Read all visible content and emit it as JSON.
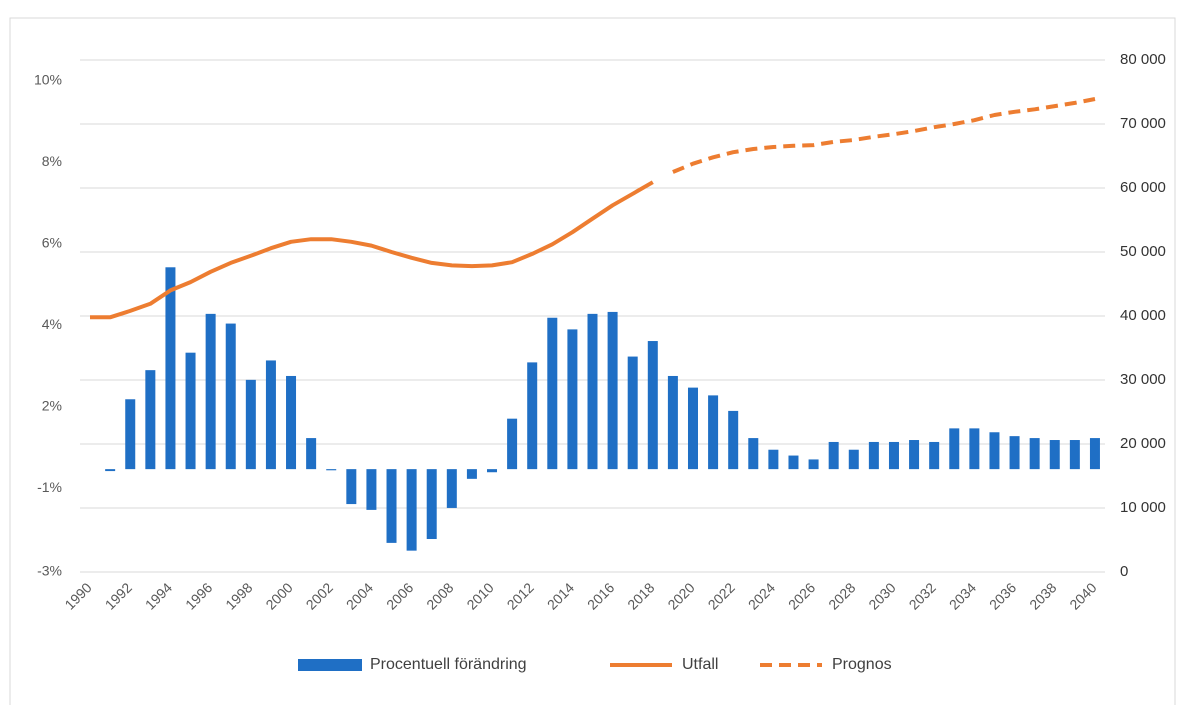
{
  "chart_data": {
    "type": "bar_line",
    "categories": [
      1990,
      null,
      1992,
      null,
      1994,
      null,
      1996,
      null,
      1998,
      null,
      2000,
      null,
      2002,
      null,
      2004,
      null,
      2006,
      null,
      2008,
      null,
      2010,
      null,
      2012,
      null,
      2014,
      null,
      2016,
      null,
      2018,
      null,
      2020,
      null,
      2022,
      null,
      2024,
      null,
      2026,
      null,
      2028,
      null,
      2030,
      null,
      2032,
      null,
      2034,
      null,
      2036,
      null,
      2038,
      null,
      2040
    ],
    "ylim": [
      -2.65,
      10.54
    ],
    "yticks": [
      {
        "value": 10,
        "label": "10%"
      },
      {
        "value": 7.9,
        "label": "8%"
      },
      {
        "value": 5.8,
        "label": "6%"
      },
      {
        "value": 3.7,
        "label": "4%"
      },
      {
        "value": 1.6,
        "label": "2%"
      },
      {
        "value": -0.5,
        "label": "-1%"
      },
      {
        "value": -2.65,
        "label": "-3%"
      }
    ],
    "y2lim": [
      0,
      80000
    ],
    "y2ticks": [
      0,
      {
        "value": 10000,
        "label": "10 000"
      },
      {
        "value": 20000,
        "label": "20 000"
      },
      {
        "value": 30000,
        "label": "30 000"
      },
      {
        "value": 40000,
        "label": "40 000"
      },
      {
        "value": 50000,
        "label": "50 000"
      },
      {
        "value": 60000,
        "label": "60 000"
      },
      {
        "value": 70000,
        "label": "70 000"
      },
      {
        "value": 80000,
        "label": "80 000"
      }
    ],
    "grid": true,
    "legend": "bottom",
    "series": [
      {
        "name": "Procentuell förändring",
        "type": "bar",
        "color": "#1f6fc5",
        "values": [
          null,
          -0.05,
          1.8,
          2.55,
          5.2,
          3.0,
          4.0,
          3.75,
          2.3,
          2.8,
          2.4,
          0.8,
          -0.03,
          -0.9,
          -1.05,
          -1.9,
          -2.1,
          -1.8,
          -1.0,
          -0.25,
          -0.08,
          1.3,
          2.75,
          3.9,
          3.6,
          4.0,
          4.05,
          2.9,
          3.3,
          2.4,
          2.1,
          1.9,
          1.5,
          0.8,
          0.5,
          0.35,
          0.25,
          0.7,
          0.5,
          0.7,
          0.7,
          0.75,
          0.7,
          1.05,
          1.05,
          0.95,
          0.85,
          0.8,
          0.75,
          0.75,
          0.8
        ]
      },
      {
        "name": "Utfall",
        "type": "line",
        "axis": "y2",
        "color": "#ed7d31",
        "dashed": false,
        "values": [
          39800,
          39800,
          40800,
          41900,
          44000,
          45300,
          46900,
          48300,
          49400,
          50600,
          51600,
          52000,
          52000,
          51600,
          51000,
          50000,
          49100,
          48300,
          47900,
          47800,
          47900,
          48400,
          49700,
          51200,
          53100,
          55200,
          57300,
          59100,
          60900,
          null,
          null,
          null,
          null,
          null,
          null,
          null,
          null,
          null,
          null,
          null,
          null,
          null,
          null,
          null,
          null,
          null,
          null,
          null,
          null,
          null,
          null
        ]
      },
      {
        "name": "Prognos",
        "type": "line",
        "axis": "y2",
        "color": "#ed7d31",
        "dashed": true,
        "values": [
          null,
          null,
          null,
          null,
          null,
          null,
          null,
          null,
          null,
          null,
          null,
          null,
          null,
          null,
          null,
          null,
          null,
          null,
          null,
          null,
          null,
          null,
          null,
          null,
          null,
          null,
          null,
          null,
          null,
          62500,
          63800,
          64800,
          65600,
          66100,
          66400,
          66600,
          66700,
          67200,
          67500,
          68000,
          68400,
          68900,
          69500,
          70000,
          70600,
          71400,
          71900,
          72300,
          72800,
          73300,
          73900
        ]
      }
    ]
  }
}
